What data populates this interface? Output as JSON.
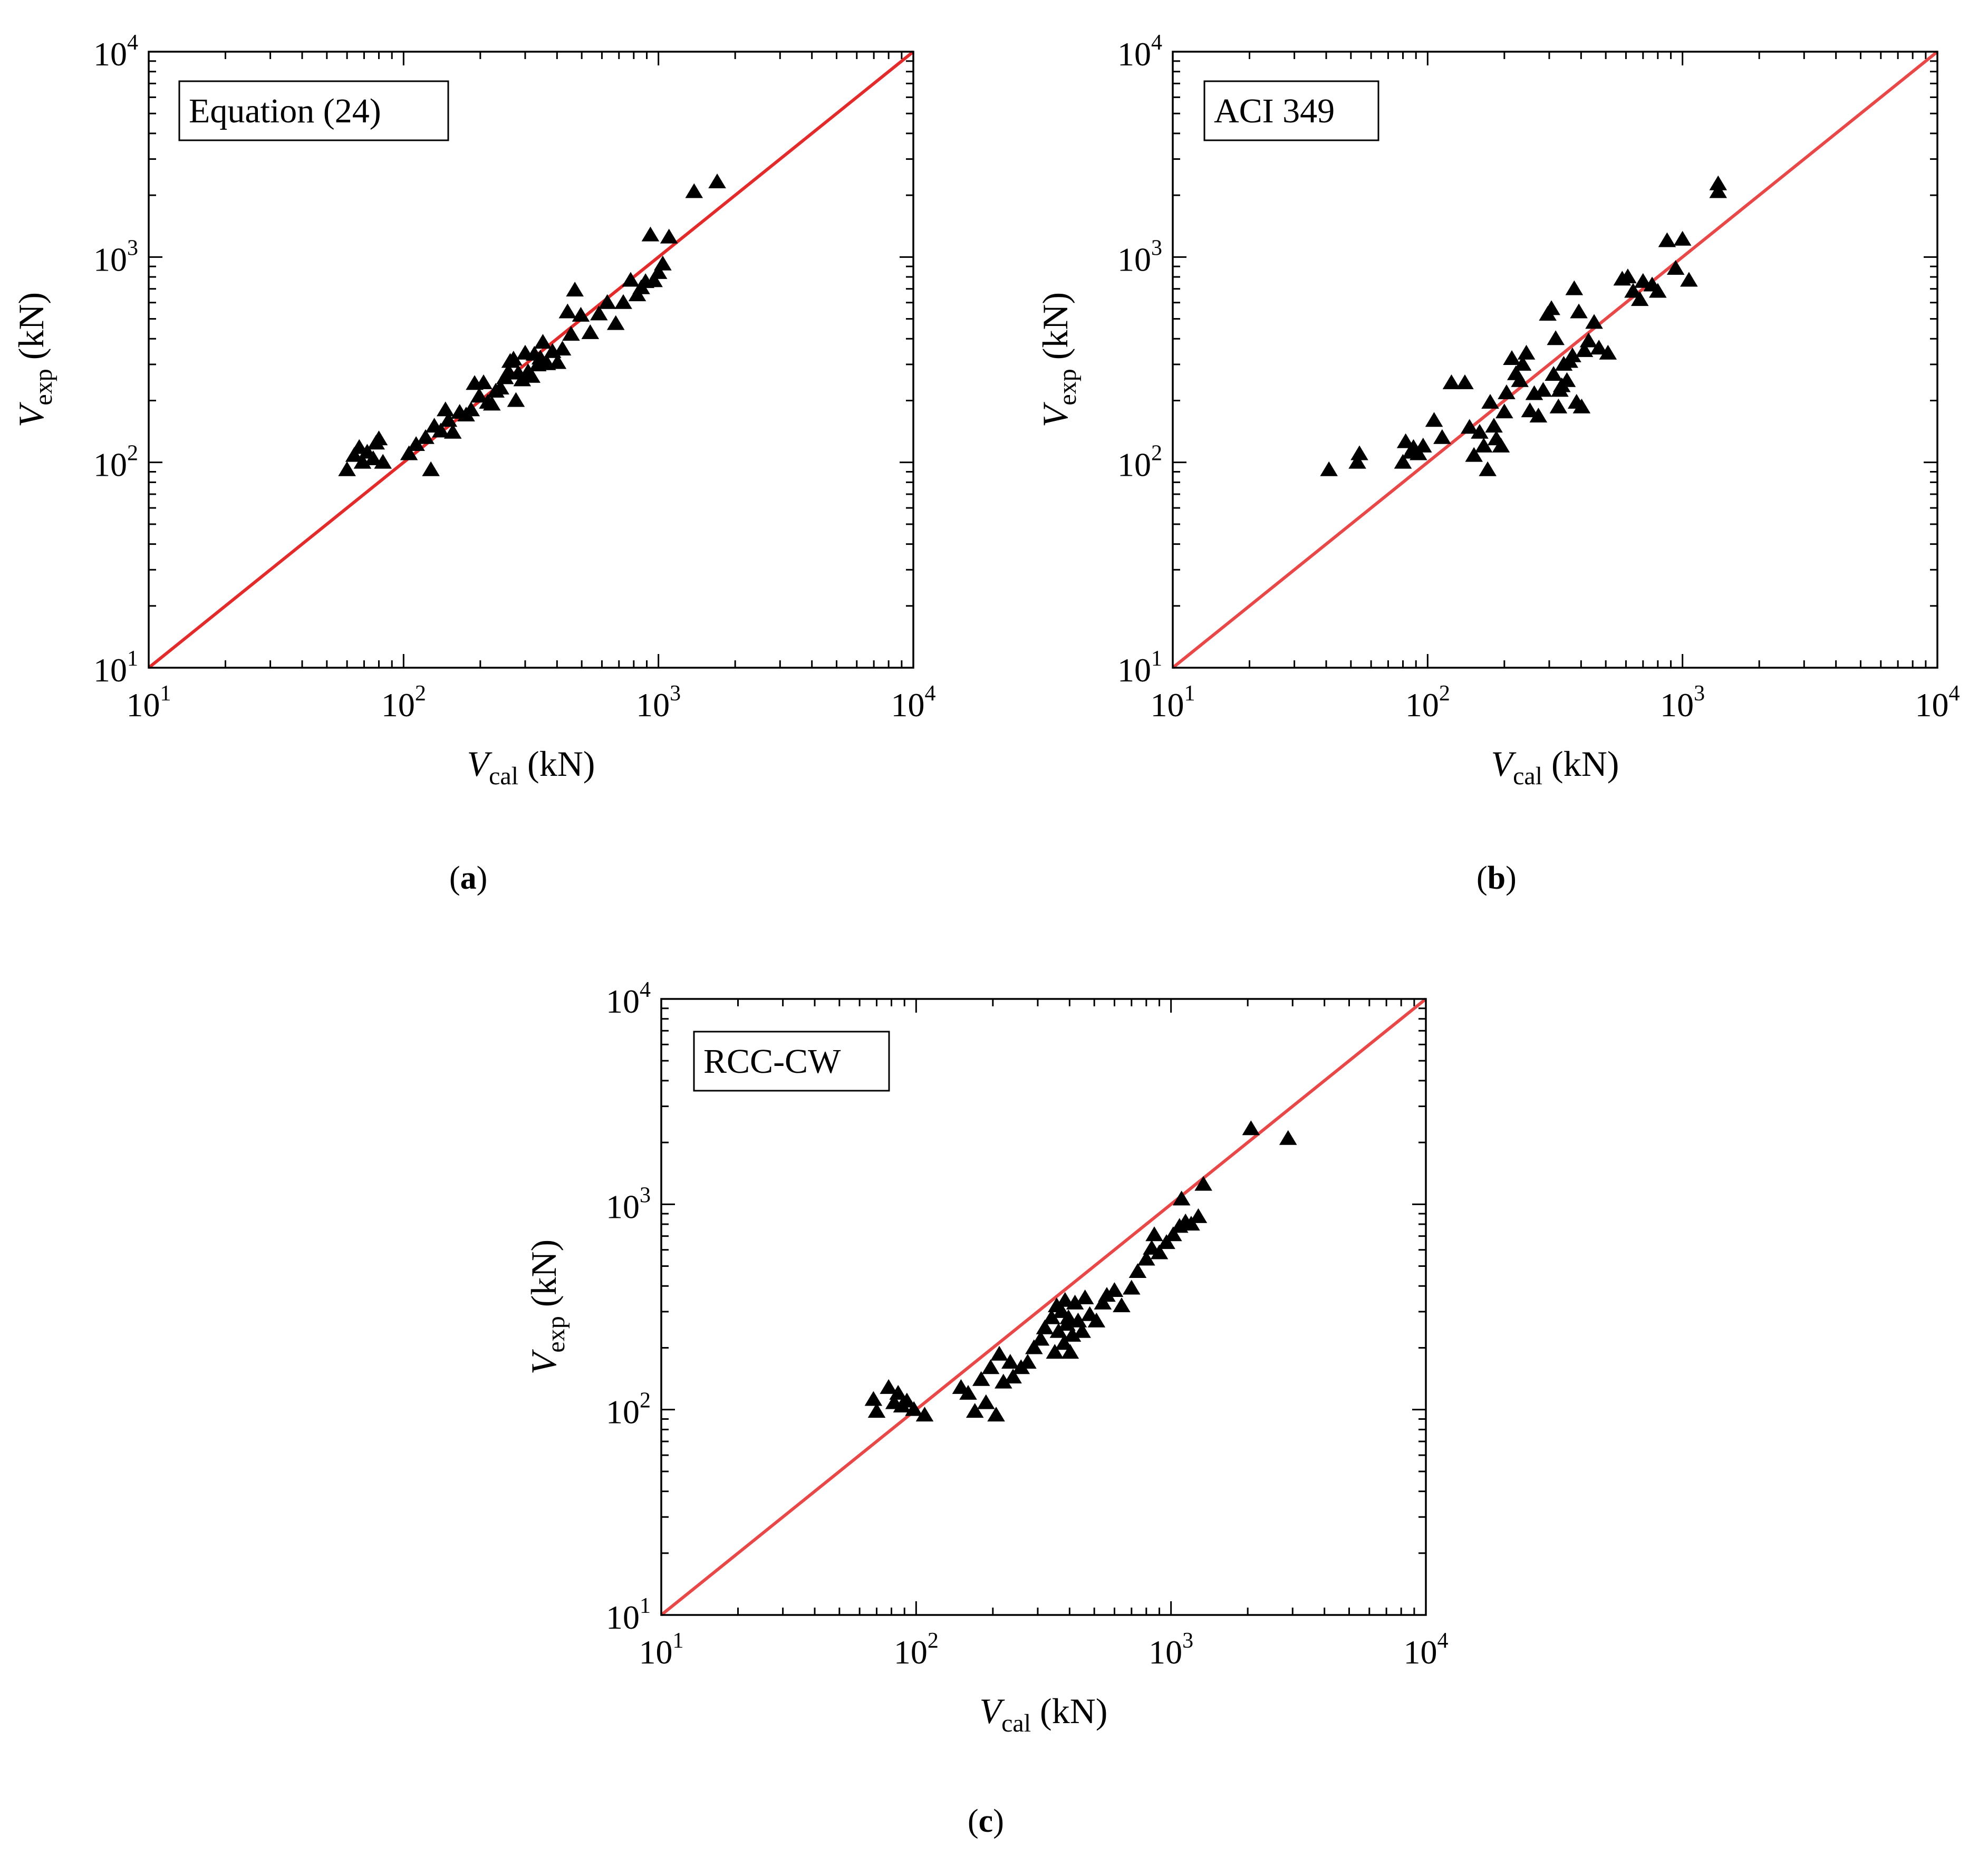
{
  "figure": {
    "captions": [
      {
        "open": "(",
        "letter": "a",
        "close": ")"
      },
      {
        "open": "(",
        "letter": "b",
        "close": ")"
      },
      {
        "open": "(",
        "letter": "c",
        "close": ")"
      }
    ]
  },
  "chart_data": [
    {
      "id": "a",
      "type": "scatter",
      "title": "Equation (24)",
      "xlabel": {
        "var": "V",
        "sub": "cal",
        "unit": "(kN)"
      },
      "ylabel": {
        "var": "V",
        "sub": "exp",
        "unit": "(kN)"
      },
      "xscale": "log",
      "yscale": "log",
      "xlim": [
        10,
        10000
      ],
      "ylim": [
        10,
        10000
      ],
      "ticks": [
        {
          "base": "10",
          "exp": "1"
        },
        {
          "base": "10",
          "exp": "2"
        },
        {
          "base": "10",
          "exp": "3"
        },
        {
          "base": "10",
          "exp": "4"
        }
      ],
      "legend_position": "top-left",
      "reference_line": {
        "type": "y=x",
        "color": "#e32b2b"
      },
      "marker": "triangle",
      "marker_color": "#000000",
      "points": [
        [
          60,
          92
        ],
        [
          64,
          108
        ],
        [
          67,
          118
        ],
        [
          69,
          100
        ],
        [
          72,
          112
        ],
        [
          76,
          104
        ],
        [
          78,
          124
        ],
        [
          80,
          130
        ],
        [
          83,
          100
        ],
        [
          105,
          110
        ],
        [
          112,
          122
        ],
        [
          122,
          132
        ],
        [
          128,
          92
        ],
        [
          132,
          150
        ],
        [
          140,
          142
        ],
        [
          146,
          180
        ],
        [
          150,
          160
        ],
        [
          156,
          140
        ],
        [
          166,
          175
        ],
        [
          176,
          170
        ],
        [
          184,
          180
        ],
        [
          190,
          242
        ],
        [
          198,
          210
        ],
        [
          206,
          244
        ],
        [
          214,
          196
        ],
        [
          222,
          192
        ],
        [
          230,
          222
        ],
        [
          240,
          230
        ],
        [
          250,
          258
        ],
        [
          258,
          276
        ],
        [
          262,
          310
        ],
        [
          270,
          318
        ],
        [
          276,
          200
        ],
        [
          282,
          272
        ],
        [
          292,
          252
        ],
        [
          300,
          340
        ],
        [
          308,
          276
        ],
        [
          318,
          262
        ],
        [
          326,
          336
        ],
        [
          336,
          298
        ],
        [
          344,
          322
        ],
        [
          352,
          384
        ],
        [
          366,
          302
        ],
        [
          384,
          346
        ],
        [
          402,
          306
        ],
        [
          420,
          356
        ],
        [
          440,
          540
        ],
        [
          454,
          420
        ],
        [
          470,
          690
        ],
        [
          496,
          520
        ],
        [
          540,
          428
        ],
        [
          584,
          528
        ],
        [
          630,
          600
        ],
        [
          680,
          474
        ],
        [
          728,
          600
        ],
        [
          778,
          770
        ],
        [
          826,
          654
        ],
        [
          856,
          708
        ],
        [
          890,
          758
        ],
        [
          930,
          1280
        ],
        [
          960,
          766
        ],
        [
          1000,
          840
        ],
        [
          1040,
          924
        ],
        [
          1100,
          1250
        ],
        [
          1380,
          2080
        ],
        [
          1700,
          2320
        ]
      ]
    },
    {
      "id": "b",
      "type": "scatter",
      "title": "ACI 349",
      "xlabel": {
        "var": "V",
        "sub": "cal",
        "unit": "(kN)"
      },
      "ylabel": {
        "var": "V",
        "sub": "exp",
        "unit": "(kN)"
      },
      "xscale": "log",
      "yscale": "log",
      "xlim": [
        10,
        10000
      ],
      "ylim": [
        10,
        10000
      ],
      "ticks": [
        {
          "base": "10",
          "exp": "1"
        },
        {
          "base": "10",
          "exp": "2"
        },
        {
          "base": "10",
          "exp": "3"
        },
        {
          "base": "10",
          "exp": "4"
        }
      ],
      "legend_position": "top-left",
      "reference_line": {
        "type": "y=x",
        "color": "#e84848"
      },
      "marker": "triangle",
      "marker_color": "#000000",
      "points": [
        [
          41,
          92
        ],
        [
          53,
          100
        ],
        [
          54,
          110
        ],
        [
          80,
          100
        ],
        [
          82,
          126
        ],
        [
          86,
          112
        ],
        [
          88,
          118
        ],
        [
          92,
          110
        ],
        [
          96,
          120
        ],
        [
          106,
          160
        ],
        [
          114,
          132
        ],
        [
          124,
          244
        ],
        [
          140,
          244
        ],
        [
          146,
          148
        ],
        [
          152,
          108
        ],
        [
          160,
          140
        ],
        [
          166,
          120
        ],
        [
          172,
          92
        ],
        [
          176,
          196
        ],
        [
          182,
          150
        ],
        [
          186,
          130
        ],
        [
          194,
          120
        ],
        [
          200,
          176
        ],
        [
          204,
          218
        ],
        [
          214,
          320
        ],
        [
          222,
          270
        ],
        [
          230,
          250
        ],
        [
          236,
          300
        ],
        [
          244,
          340
        ],
        [
          252,
          178
        ],
        [
          262,
          216
        ],
        [
          272,
          168
        ],
        [
          284,
          224
        ],
        [
          296,
          526
        ],
        [
          306,
          560
        ],
        [
          312,
          268
        ],
        [
          318,
          400
        ],
        [
          326,
          186
        ],
        [
          330,
          224
        ],
        [
          336,
          236
        ],
        [
          342,
          300
        ],
        [
          352,
          250
        ],
        [
          360,
          310
        ],
        [
          370,
          330
        ],
        [
          376,
          700
        ],
        [
          384,
          196
        ],
        [
          392,
          540
        ],
        [
          402,
          186
        ],
        [
          412,
          350
        ],
        [
          428,
          390
        ],
        [
          450,
          480
        ],
        [
          470,
          360
        ],
        [
          510,
          340
        ],
        [
          580,
          780
        ],
        [
          610,
          800
        ],
        [
          640,
          680
        ],
        [
          680,
          620
        ],
        [
          700,
          760
        ],
        [
          760,
          730
        ],
        [
          800,
          680
        ],
        [
          870,
          1200
        ],
        [
          940,
          880
        ],
        [
          1000,
          1220
        ],
        [
          1060,
          770
        ],
        [
          1380,
          2080
        ],
        [
          1380,
          2270
        ]
      ]
    },
    {
      "id": "c",
      "type": "scatter",
      "title": "RCC-CW",
      "xlabel": {
        "var": "V",
        "sub": "cal",
        "unit": "(kN)"
      },
      "ylabel": {
        "var": "V",
        "sub": "exp",
        "unit": "(kN)"
      },
      "xscale": "log",
      "yscale": "log",
      "xlim": [
        10,
        10000
      ],
      "ylim": [
        10,
        10000
      ],
      "ticks": [
        {
          "base": "10",
          "exp": "1"
        },
        {
          "base": "10",
          "exp": "2"
        },
        {
          "base": "10",
          "exp": "3"
        },
        {
          "base": "10",
          "exp": "4"
        }
      ],
      "legend_position": "top-left",
      "reference_line": {
        "type": "y=x",
        "color": "#e84848"
      },
      "marker": "triangle",
      "marker_color": "#000000",
      "points": [
        [
          68,
          112
        ],
        [
          70,
          98
        ],
        [
          78,
          128
        ],
        [
          82,
          108
        ],
        [
          85,
          120
        ],
        [
          88,
          104
        ],
        [
          92,
          110
        ],
        [
          98,
          100
        ],
        [
          108,
          94
        ],
        [
          150,
          128
        ],
        [
          160,
          120
        ],
        [
          170,
          98
        ],
        [
          180,
          140
        ],
        [
          188,
          108
        ],
        [
          196,
          160
        ],
        [
          206,
          94
        ],
        [
          212,
          186
        ],
        [
          220,
          136
        ],
        [
          234,
          170
        ],
        [
          240,
          144
        ],
        [
          258,
          160
        ],
        [
          274,
          170
        ],
        [
          290,
          200
        ],
        [
          308,
          220
        ],
        [
          320,
          250
        ],
        [
          340,
          280
        ],
        [
          350,
          190
        ],
        [
          356,
          320
        ],
        [
          362,
          240
        ],
        [
          372,
          300
        ],
        [
          380,
          210
        ],
        [
          384,
          340
        ],
        [
          390,
          260
        ],
        [
          396,
          280
        ],
        [
          402,
          190
        ],
        [
          410,
          230
        ],
        [
          420,
          330
        ],
        [
          432,
          270
        ],
        [
          448,
          240
        ],
        [
          460,
          350
        ],
        [
          480,
          290
        ],
        [
          510,
          270
        ],
        [
          540,
          330
        ],
        [
          560,
          360
        ],
        [
          600,
          380
        ],
        [
          640,
          320
        ],
        [
          700,
          390
        ],
        [
          740,
          470
        ],
        [
          800,
          540
        ],
        [
          840,
          610
        ],
        [
          860,
          710
        ],
        [
          900,
          580
        ],
        [
          960,
          650
        ],
        [
          1020,
          710
        ],
        [
          1080,
          780
        ],
        [
          1100,
          1060
        ],
        [
          1140,
          820
        ],
        [
          1200,
          800
        ],
        [
          1280,
          870
        ],
        [
          1340,
          1250
        ],
        [
          2060,
          2330
        ],
        [
          2880,
          2090
        ]
      ]
    }
  ]
}
